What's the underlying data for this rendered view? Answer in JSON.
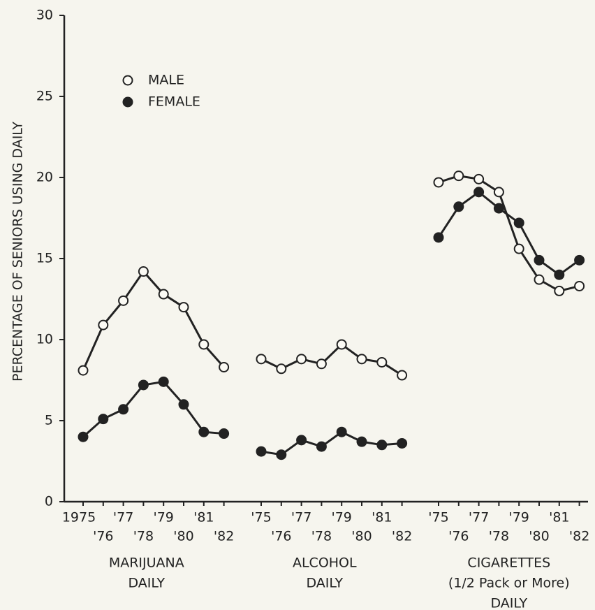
{
  "chart_data": {
    "type": "line",
    "ylabel": "PERCENTAGE OF SENIORS USING DAILY",
    "ylim": [
      0,
      30
    ],
    "yticks": [
      0,
      5,
      10,
      15,
      20,
      25,
      30
    ],
    "legend": "upper left",
    "color": "#222222",
    "series": [
      {
        "name": "MALE",
        "marker": "open"
      },
      {
        "name": "FEMALE",
        "marker": "filled"
      }
    ],
    "panels": [
      {
        "label": [
          "MARIJUANA",
          "DAILY"
        ],
        "categories": [
          "1975",
          "'76",
          "'77",
          "'78",
          "'79",
          "'80",
          "'81",
          "'82"
        ],
        "series": [
          {
            "values": [
              8.1,
              10.9,
              12.4,
              14.2,
              12.8,
              12.0,
              9.7,
              8.3
            ]
          },
          {
            "values": [
              4.0,
              5.1,
              5.7,
              7.2,
              7.4,
              6.0,
              4.3,
              4.2
            ]
          }
        ]
      },
      {
        "label": [
          "ALCOHOL",
          "DAILY"
        ],
        "categories": [
          "'75",
          "'76",
          "'77",
          "'78",
          "'79",
          "'80",
          "'81",
          "'82"
        ],
        "series": [
          {
            "values": [
              8.8,
              8.2,
              8.8,
              8.5,
              9.7,
              8.8,
              8.6,
              7.8
            ]
          },
          {
            "values": [
              3.1,
              2.9,
              3.8,
              3.4,
              4.3,
              3.7,
              3.5,
              3.6
            ]
          }
        ]
      },
      {
        "label": [
          "CIGARETTES",
          "(1/2 Pack or More)",
          "DAILY"
        ],
        "categories": [
          "'75",
          "'76",
          "'77",
          "'78",
          "'79",
          "'80",
          "'81",
          "'82"
        ],
        "series": [
          {
            "values": [
              19.7,
              20.1,
              19.9,
              19.1,
              15.6,
              13.7,
              13.0,
              13.3
            ]
          },
          {
            "values": [
              16.3,
              18.2,
              19.1,
              18.1,
              17.2,
              14.9,
              14.0,
              14.9
            ]
          }
        ]
      }
    ]
  }
}
